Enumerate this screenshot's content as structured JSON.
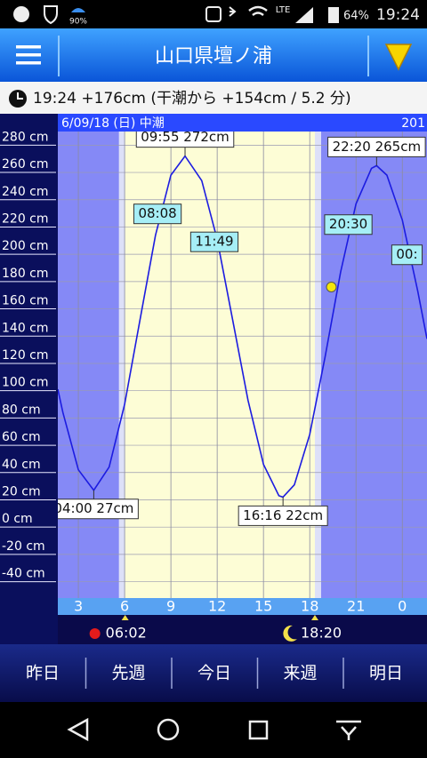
{
  "status_bar": {
    "battery_small": "90%",
    "network": "LTE",
    "battery": "64%",
    "time": "19:24"
  },
  "header": {
    "title": "山口県壇ノ浦"
  },
  "info": "19:24 +176cm (干潮から +154cm / 5.2 分)",
  "chart_data": {
    "type": "line",
    "date_label": "6/09/18 (日) 中潮",
    "next_date_label": "201",
    "x": [
      1.67,
      2,
      3,
      4,
      5,
      6,
      7,
      8,
      9,
      9.917,
      11,
      12,
      13,
      14,
      15,
      16,
      16.267,
      17,
      18,
      19,
      20,
      21,
      22,
      22.333,
      23,
      24,
      25,
      25.6
    ],
    "series": [
      {
        "color": "#1c1ce0",
        "values": [
          101,
          84,
          42,
          27,
          44,
          90,
          152,
          214,
          258,
          272,
          254,
          211,
          152,
          93,
          46,
          23,
          22,
          31,
          68,
          125,
          187,
          237,
          263,
          265,
          258,
          225,
          173,
          138
        ]
      }
    ],
    "xlim": [
      1.67,
      25.6
    ],
    "ylim": [
      -52,
      290
    ],
    "xticks": [
      3,
      6,
      9,
      12,
      15,
      18,
      21,
      {
        "value": 24,
        "label": "0"
      }
    ],
    "yticks": [
      {
        "value": 280,
        "label": "280 cm"
      },
      {
        "value": 260,
        "label": "260 cm"
      },
      {
        "value": 240,
        "label": "240 cm"
      },
      {
        "value": 220,
        "label": "220 cm"
      },
      {
        "value": 200,
        "label": "200 cm"
      },
      {
        "value": 180,
        "label": "180 cm"
      },
      {
        "value": 160,
        "label": "160 cm"
      },
      {
        "value": 140,
        "label": "140 cm"
      },
      {
        "value": 120,
        "label": "120 cm"
      },
      {
        "value": 100,
        "label": "100 cm"
      },
      {
        "value": 80,
        "label": "80 cm"
      },
      {
        "value": 60,
        "label": "60 cm"
      },
      {
        "value": 40,
        "label": "40 cm"
      },
      {
        "value": 20,
        "label": "20 cm"
      },
      {
        "value": 0,
        "label": "0 cm"
      },
      {
        "value": -20,
        "label": "-20 cm"
      },
      {
        "value": -40,
        "label": "-40 cm"
      }
    ],
    "grid": true,
    "extremes": [
      {
        "label": "04:00 27cm",
        "x": 4.0,
        "value": 27,
        "kind": "low"
      },
      {
        "label": "09:55 272cm",
        "x": 9.917,
        "value": 272,
        "kind": "high"
      },
      {
        "label": "16:16 22cm",
        "x": 16.267,
        "value": 22,
        "kind": "low"
      },
      {
        "label": "22:20 265cm",
        "x": 22.333,
        "value": 265,
        "kind": "high"
      }
    ],
    "markers": [
      {
        "label": "08:08",
        "x": 8.133,
        "dir": "up"
      },
      {
        "label": "11:49",
        "x": 11.817,
        "dir": "down"
      },
      {
        "label": "20:30",
        "x": 20.5,
        "dir": "up"
      },
      {
        "label": "00:",
        "x": 24.3,
        "dir": "down"
      }
    ],
    "now": {
      "x": 19.4,
      "value": 176,
      "color": "#f5e60a"
    },
    "sunrise": {
      "label": "06:02",
      "x": 6.033
    },
    "sunset": {
      "label": "18:20",
      "x": 18.333
    }
  },
  "nav": [
    "昨日",
    "先週",
    "今日",
    "来週",
    "明日"
  ]
}
